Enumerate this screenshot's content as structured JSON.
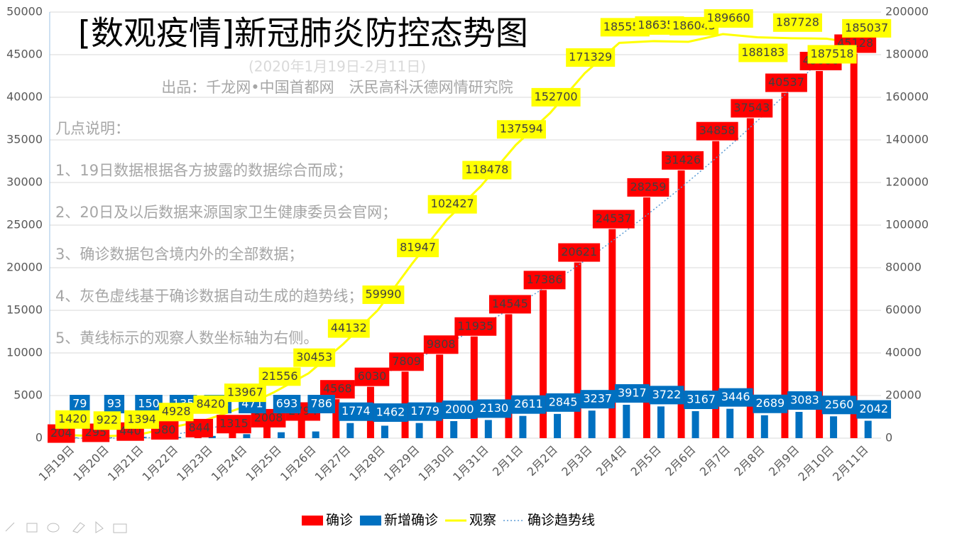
{
  "chart_data": {
    "type": "bar",
    "title": "[数观疫情]新冠肺炎防控态势图",
    "subtitle": "(2020年1月19日-2月11日)",
    "source": "出品：千龙网•中国首都网　沃民高科沃德网情研究院",
    "notes": [
      "几点说明：",
      "1、19日数据根据各方披露的数据综合而成；",
      "2、20日及以后数据来源国家卫生健康委员会官网；",
      "3、确诊数据包含境内外的全部数据；",
      "4、灰色虚线基于确诊数据自动生成的趋势线；",
      "5、黄线标示的观察人数坐标轴为右侧。"
    ],
    "categories": [
      "1月19日",
      "1月20日",
      "1月21日",
      "1月22日",
      "1月23日",
      "1月24日",
      "1月25日",
      "1月26日",
      "1月27日",
      "1月28日",
      "1月29日",
      "1月30日",
      "1月31日",
      "2月1日",
      "2月2日",
      "2月3日",
      "2月4日",
      "2月5日",
      "2月6日",
      "2月7日",
      "2月8日",
      "2月9日",
      "2月10日",
      "2月11日"
    ],
    "series": [
      {
        "name": "确诊",
        "type": "bar",
        "color": "#ff0000",
        "values": [
          204,
          295,
          440,
          580,
          844,
          1315,
          2008,
          2794,
          4568,
          6030,
          7809,
          9808,
          11935,
          14545,
          17386,
          20621,
          24537,
          28259,
          31426,
          34858,
          37543,
          40537,
          43086,
          45128
        ]
      },
      {
        "name": "新增确诊",
        "type": "bar",
        "color": "#0070c0",
        "values": [
          79,
          93,
          150,
          135,
          264,
          471,
          693,
          786,
          1774,
          1462,
          1779,
          2000,
          2130,
          2611,
          2845,
          3237,
          3917,
          3722,
          3167,
          3446,
          2689,
          3083,
          2560,
          2042
        ]
      },
      {
        "name": "观察",
        "type": "line",
        "axis": "y2",
        "color": "#ffff00",
        "values": [
          1420,
          922,
          1394,
          4928,
          8420,
          13967,
          21556,
          30453,
          44132,
          59990,
          81947,
          102427,
          118478,
          137594,
          152700,
          171329,
          185555,
          186354,
          186045,
          189660,
          188183,
          187728,
          187518,
          185037
        ]
      }
    ],
    "trendline": {
      "name": "确诊趋势线",
      "color": "#5b9bd5",
      "of": 0,
      "order": 2
    },
    "ylim": [
      0,
      50000
    ],
    "yticks": [
      0,
      5000,
      10000,
      15000,
      20000,
      25000,
      30000,
      35000,
      40000,
      45000,
      50000
    ],
    "y2lim": [
      0,
      200000
    ],
    "y2ticks": [
      0,
      20000,
      40000,
      60000,
      80000,
      100000,
      120000,
      140000,
      160000,
      180000,
      200000
    ],
    "grid": true,
    "legend": "bottom"
  }
}
